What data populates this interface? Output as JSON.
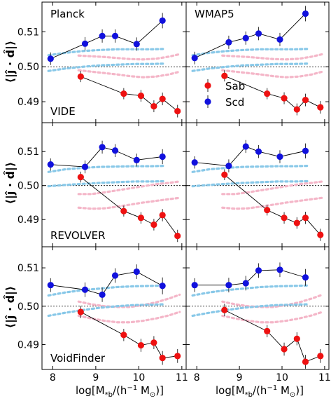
{
  "figure": {
    "ylabel": "⟨|ĵ · d̂|⟩",
    "xlabel_main": "log[M",
    "xlabel_sub": "*b",
    "xlabel_rest": "/(h",
    "xlabel_sup": "−1",
    "xlabel_tail": " M",
    "xlabel_sun": "⊙",
    "xlabel_close": ")]",
    "legend": [
      {
        "label": "Sab",
        "color": "#ee1111"
      },
      {
        "label": "Scd",
        "color": "#1111dd"
      }
    ]
  },
  "colors": {
    "sab": "#ee1111",
    "scd": "#1111dd",
    "sab_band": "#f4b6c8",
    "scd_band": "#88c8e8"
  },
  "chart_data": [
    {
      "type": "scatter",
      "row": 0,
      "col": 0,
      "labels": [
        "Planck",
        "VIDE"
      ],
      "xlim": [
        7.75,
        11.1
      ],
      "ylim": [
        0.484,
        0.5185
      ],
      "xticks": [
        8,
        9,
        10,
        11
      ],
      "yticks": [
        0.49,
        0.5,
        0.51
      ],
      "reference_line": 0.5,
      "series": [
        {
          "name": "Sab",
          "x": [
            8.65,
            9.65,
            10.05,
            10.35,
            10.55,
            10.9
          ],
          "y": [
            0.4972,
            0.4923,
            0.4917,
            0.4887,
            0.4908,
            0.4873
          ],
          "err": [
            0.0016,
            0.0016,
            0.0017,
            0.0017,
            0.0018,
            0.0018
          ]
        },
        {
          "name": "Scd",
          "x": [
            7.95,
            8.75,
            9.15,
            9.45,
            9.95,
            10.55
          ],
          "y": [
            0.5023,
            0.5066,
            0.5088,
            0.5088,
            0.5065,
            0.5132
          ],
          "err": [
            0.0018,
            0.0019,
            0.0019,
            0.0019,
            0.0019,
            0.0022
          ]
        }
      ],
      "sab_band": {
        "x": [
          8.6,
          8.9,
          9.2,
          9.5,
          9.8,
          10.1,
          10.4,
          10.7,
          10.95
        ],
        "upper": [
          0.5032,
          0.503,
          0.5028,
          0.5025,
          0.5022,
          0.5021,
          0.5023,
          0.5029,
          0.5036
        ],
        "lower": [
          0.499,
          0.4986,
          0.4982,
          0.4978,
          0.4973,
          0.497,
          0.4972,
          0.4978,
          0.4986
        ]
      },
      "scd_band": {
        "x": [
          7.9,
          8.3,
          8.7,
          9.1,
          9.5,
          9.9,
          10.3,
          10.6
        ],
        "upper": [
          0.5033,
          0.504,
          0.5045,
          0.5048,
          0.505,
          0.505,
          0.505,
          0.5051
        ],
        "lower": [
          0.4988,
          0.4995,
          0.5,
          0.5004,
          0.5006,
          0.5008,
          0.5008,
          0.5009
        ]
      }
    },
    {
      "type": "scatter",
      "row": 0,
      "col": 1,
      "labels": [
        "WMAP5",
        ""
      ],
      "xlim": [
        7.75,
        11.1
      ],
      "ylim": [
        0.484,
        0.5185
      ],
      "xticks": [
        8,
        9,
        10,
        11
      ],
      "yticks": [
        0.49,
        0.5,
        0.51
      ],
      "reference_line": 0.5,
      "series": [
        {
          "name": "Sab",
          "x": [
            8.65,
            9.65,
            10.05,
            10.35,
            10.55,
            10.9
          ],
          "y": [
            0.4974,
            0.4923,
            0.491,
            0.4878,
            0.4905,
            0.4884
          ],
          "err": [
            0.0016,
            0.0016,
            0.0017,
            0.0017,
            0.0018,
            0.0018
          ]
        },
        {
          "name": "Scd",
          "x": [
            7.95,
            8.75,
            9.15,
            9.45,
            9.95,
            10.55
          ],
          "y": [
            0.5025,
            0.507,
            0.5082,
            0.5095,
            0.5078,
            0.5152
          ],
          "err": [
            0.0018,
            0.0019,
            0.0019,
            0.0019,
            0.0019,
            0.0022
          ]
        }
      ],
      "sab_band": {
        "x": [
          8.6,
          8.9,
          9.2,
          9.5,
          9.8,
          10.1,
          10.4,
          10.7,
          10.95
        ],
        "upper": [
          0.5032,
          0.503,
          0.5028,
          0.5025,
          0.5022,
          0.5021,
          0.5023,
          0.5029,
          0.5036
        ],
        "lower": [
          0.499,
          0.4986,
          0.4982,
          0.4978,
          0.4973,
          0.497,
          0.4972,
          0.4978,
          0.4986
        ]
      },
      "scd_band": {
        "x": [
          7.9,
          8.3,
          8.7,
          9.1,
          9.5,
          9.9,
          10.3,
          10.6
        ],
        "upper": [
          0.5033,
          0.504,
          0.5045,
          0.5048,
          0.505,
          0.505,
          0.505,
          0.5051
        ],
        "lower": [
          0.4988,
          0.4995,
          0.5,
          0.5004,
          0.5006,
          0.5008,
          0.5008,
          0.5009
        ]
      }
    },
    {
      "type": "scatter",
      "row": 1,
      "col": 0,
      "labels": [
        "",
        "REVOLVER"
      ],
      "xlim": [
        7.75,
        11.1
      ],
      "ylim": [
        0.482,
        0.5185
      ],
      "xticks": [
        8,
        9,
        10,
        11
      ],
      "yticks": [
        0.49,
        0.5,
        0.51
      ],
      "reference_line": 0.5,
      "series": [
        {
          "name": "Sab",
          "x": [
            8.65,
            9.65,
            10.05,
            10.35,
            10.55,
            10.9
          ],
          "y": [
            0.5025,
            0.4925,
            0.4905,
            0.4885,
            0.4913,
            0.4852
          ],
          "err": [
            0.0016,
            0.0016,
            0.0017,
            0.0017,
            0.0018,
            0.0018
          ]
        },
        {
          "name": "Scd",
          "x": [
            7.95,
            8.75,
            9.15,
            9.45,
            9.95,
            10.55
          ],
          "y": [
            0.5062,
            0.5055,
            0.5113,
            0.5103,
            0.5075,
            0.5085
          ],
          "err": [
            0.0018,
            0.0019,
            0.0019,
            0.0019,
            0.0019,
            0.0022
          ]
        }
      ],
      "sab_band": {
        "x": [
          8.6,
          8.9,
          9.2,
          9.5,
          9.8,
          10.1,
          10.4,
          10.7,
          10.95
        ],
        "upper": [
          0.4975,
          0.4975,
          0.498,
          0.4986,
          0.4992,
          0.4998,
          0.5004,
          0.5008,
          0.5012
        ],
        "lower": [
          0.4935,
          0.4932,
          0.4933,
          0.4938,
          0.4944,
          0.495,
          0.4955,
          0.496,
          0.4964
        ]
      },
      "scd_band": {
        "x": [
          7.9,
          8.3,
          8.7,
          9.1,
          9.5,
          9.9,
          10.3,
          10.6
        ],
        "upper": [
          0.504,
          0.5048,
          0.5052,
          0.5055,
          0.5056,
          0.5057,
          0.5057,
          0.5058
        ],
        "lower": [
          0.4998,
          0.5002,
          0.5005,
          0.5008,
          0.501,
          0.5012,
          0.5012,
          0.5013
        ]
      }
    },
    {
      "type": "scatter",
      "row": 1,
      "col": 1,
      "labels": [
        "",
        ""
      ],
      "xlim": [
        7.75,
        11.1
      ],
      "ylim": [
        0.482,
        0.5185
      ],
      "xticks": [
        8,
        9,
        10,
        11
      ],
      "yticks": [
        0.49,
        0.5,
        0.51
      ],
      "reference_line": 0.5,
      "series": [
        {
          "name": "Sab",
          "x": [
            8.65,
            9.65,
            10.05,
            10.35,
            10.55,
            10.9
          ],
          "y": [
            0.5032,
            0.4928,
            0.4905,
            0.489,
            0.4905,
            0.4855
          ],
          "err": [
            0.0016,
            0.0016,
            0.0017,
            0.0017,
            0.0018,
            0.0018
          ]
        },
        {
          "name": "Scd",
          "x": [
            7.95,
            8.75,
            9.15,
            9.45,
            9.95,
            10.55
          ],
          "y": [
            0.5068,
            0.5058,
            0.5115,
            0.51,
            0.5085,
            0.5102
          ],
          "err": [
            0.0018,
            0.0019,
            0.0019,
            0.0019,
            0.0019,
            0.0022
          ]
        }
      ],
      "sab_band": {
        "x": [
          8.6,
          8.9,
          9.2,
          9.5,
          9.8,
          10.1,
          10.4,
          10.7,
          10.95
        ],
        "upper": [
          0.4975,
          0.4975,
          0.498,
          0.4986,
          0.4992,
          0.4998,
          0.5004,
          0.5008,
          0.5012
        ],
        "lower": [
          0.4935,
          0.4932,
          0.4933,
          0.4938,
          0.4944,
          0.495,
          0.4955,
          0.496,
          0.4964
        ]
      },
      "scd_band": {
        "x": [
          7.9,
          8.3,
          8.7,
          9.1,
          9.5,
          9.9,
          10.3,
          10.6
        ],
        "upper": [
          0.504,
          0.5048,
          0.5052,
          0.5055,
          0.5056,
          0.5057,
          0.5057,
          0.5058
        ],
        "lower": [
          0.4998,
          0.5002,
          0.5005,
          0.5008,
          0.501,
          0.5012,
          0.5012,
          0.5013
        ]
      }
    },
    {
      "type": "scatter",
      "row": 2,
      "col": 0,
      "labels": [
        "",
        "VoidFinder"
      ],
      "xlim": [
        7.75,
        11.1
      ],
      "ylim": [
        0.4835,
        0.5155
      ],
      "xticks": [
        8,
        9,
        10,
        11
      ],
      "yticks": [
        0.49,
        0.5,
        0.51
      ],
      "reference_line": 0.5,
      "series": [
        {
          "name": "Sab",
          "x": [
            8.65,
            9.65,
            10.05,
            10.35,
            10.55,
            10.9
          ],
          "y": [
            0.4985,
            0.4925,
            0.4898,
            0.4905,
            0.4865,
            0.487
          ],
          "err": [
            0.0016,
            0.0016,
            0.0017,
            0.0017,
            0.0018,
            0.0018
          ]
        },
        {
          "name": "Scd",
          "x": [
            7.95,
            8.75,
            9.15,
            9.45,
            9.95,
            10.55
          ],
          "y": [
            0.5055,
            0.5043,
            0.503,
            0.508,
            0.509,
            0.5053
          ],
          "err": [
            0.0018,
            0.0019,
            0.0019,
            0.0019,
            0.0019,
            0.0022
          ]
        }
      ],
      "sab_band": {
        "x": [
          8.6,
          8.9,
          9.2,
          9.5,
          9.8,
          10.1,
          10.4,
          10.7,
          10.95
        ],
        "upper": [
          0.5012,
          0.5005,
          0.5,
          0.4998,
          0.4998,
          0.5003,
          0.501,
          0.502,
          0.503
        ],
        "lower": [
          0.4975,
          0.4968,
          0.4962,
          0.4958,
          0.4958,
          0.4962,
          0.4968,
          0.4976,
          0.4985
        ]
      },
      "scd_band": {
        "x": [
          7.9,
          8.3,
          8.7,
          9.1,
          9.5,
          9.9,
          10.3,
          10.6
        ],
        "upper": [
          0.5028,
          0.5036,
          0.5042,
          0.5046,
          0.505,
          0.5052,
          0.5053,
          0.5054
        ],
        "lower": [
          0.4975,
          0.4983,
          0.499,
          0.4996,
          0.5,
          0.5003,
          0.5004,
          0.5005
        ]
      }
    },
    {
      "type": "scatter",
      "row": 2,
      "col": 1,
      "labels": [
        "",
        ""
      ],
      "xlim": [
        7.75,
        11.1
      ],
      "ylim": [
        0.4835,
        0.5155
      ],
      "xticks": [
        8,
        9,
        10,
        11
      ],
      "yticks": [
        0.49,
        0.5,
        0.51
      ],
      "reference_line": 0.5,
      "series": [
        {
          "name": "Sab",
          "x": [
            8.65,
            9.65,
            10.05,
            10.35,
            10.55,
            10.9
          ],
          "y": [
            0.499,
            0.4935,
            0.4888,
            0.4915,
            0.4855,
            0.487
          ],
          "err": [
            0.0016,
            0.0016,
            0.0017,
            0.0017,
            0.0018,
            0.0018
          ]
        },
        {
          "name": "Scd",
          "x": [
            7.95,
            8.75,
            9.15,
            9.45,
            9.95,
            10.55
          ],
          "y": [
            0.5055,
            0.5055,
            0.506,
            0.5093,
            0.5095,
            0.5075
          ],
          "err": [
            0.0018,
            0.0019,
            0.0019,
            0.0019,
            0.0019,
            0.0022
          ]
        }
      ],
      "sab_band": {
        "x": [
          8.6,
          8.9,
          9.2,
          9.5,
          9.8,
          10.1,
          10.4,
          10.7,
          10.95
        ],
        "upper": [
          0.5012,
          0.5005,
          0.5,
          0.4998,
          0.4998,
          0.5003,
          0.501,
          0.502,
          0.503
        ],
        "lower": [
          0.4975,
          0.4968,
          0.4962,
          0.4958,
          0.4958,
          0.4962,
          0.4968,
          0.4976,
          0.4985
        ]
      },
      "scd_band": {
        "x": [
          7.9,
          8.3,
          8.7,
          9.1,
          9.5,
          9.9,
          10.3,
          10.6
        ],
        "upper": [
          0.5028,
          0.5036,
          0.5042,
          0.5046,
          0.505,
          0.5052,
          0.5053,
          0.5054
        ],
        "lower": [
          0.4975,
          0.4983,
          0.499,
          0.4996,
          0.5,
          0.5003,
          0.5004,
          0.5005
        ]
      }
    }
  ]
}
